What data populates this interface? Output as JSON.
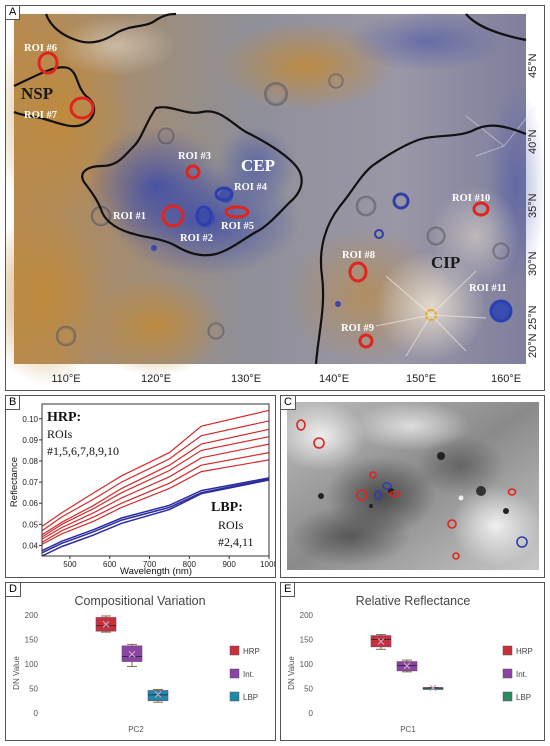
{
  "panels": {
    "a": "A",
    "b": "B",
    "c": "C",
    "d": "D",
    "e": "E"
  },
  "map": {
    "regions": [
      {
        "id": "nsp",
        "label": "NSP"
      },
      {
        "id": "cep",
        "label": "CEP"
      },
      {
        "id": "cip",
        "label": "CIP"
      }
    ],
    "rois": [
      {
        "label": "ROI #6",
        "group": "HRP"
      },
      {
        "label": "ROI #7",
        "group": "HRP"
      },
      {
        "label": "ROI #3",
        "group": "HRP"
      },
      {
        "label": "ROI #4",
        "group": "LBP"
      },
      {
        "label": "ROI #1",
        "group": "HRP"
      },
      {
        "label": "ROI #2",
        "group": "LBP"
      },
      {
        "label": "ROI #5",
        "group": "HRP"
      },
      {
        "label": "ROI #8",
        "group": "HRP"
      },
      {
        "label": "ROI #9",
        "group": "HRP"
      },
      {
        "label": "ROI #10",
        "group": "HRP"
      },
      {
        "label": "ROI #11",
        "group": "LBP"
      }
    ],
    "lat_labels": [
      "45°N",
      "40°N",
      "35°N",
      "30°N",
      "25°N",
      "20°N"
    ],
    "lon_labels": [
      "110°E",
      "120°E",
      "130°E",
      "140°E",
      "150°E",
      "160°E"
    ]
  },
  "spectra": {
    "chart_data": {
      "type": "line",
      "xlabel": "Wavelength (nm)",
      "ylabel": "Reflectance",
      "xlim": [
        430,
        1000
      ],
      "ylim": [
        0.035,
        0.107
      ],
      "xticks": [
        500,
        600,
        700,
        800,
        900,
        1000
      ],
      "yticks": [
        0.04,
        0.05,
        0.06,
        0.07,
        0.08,
        0.09,
        0.1
      ],
      "x": [
        430,
        480,
        560,
        630,
        750,
        830,
        1000
      ],
      "hrp_color": "#d42a2a",
      "lbp_color": "#2c2ca0",
      "series": [
        {
          "group": "HRP",
          "values": [
            0.049,
            0.0555,
            0.065,
            0.073,
            0.084,
            0.0965,
            0.104
          ]
        },
        {
          "group": "HRP",
          "values": [
            0.047,
            0.0535,
            0.062,
            0.07,
            0.081,
            0.092,
            0.099
          ]
        },
        {
          "group": "HRP",
          "values": [
            0.045,
            0.051,
            0.059,
            0.067,
            0.078,
            0.088,
            0.095
          ]
        },
        {
          "group": "HRP",
          "values": [
            0.044,
            0.05,
            0.0575,
            0.065,
            0.0755,
            0.085,
            0.0915
          ]
        },
        {
          "group": "HRP",
          "values": [
            0.043,
            0.0485,
            0.0555,
            0.0625,
            0.0725,
            0.0815,
            0.088
          ]
        },
        {
          "group": "HRP",
          "values": [
            0.0415,
            0.047,
            0.0535,
            0.06,
            0.0695,
            0.078,
            0.084
          ]
        },
        {
          "group": "HRP",
          "values": [
            0.0405,
            0.0455,
            0.0515,
            0.058,
            0.067,
            0.075,
            0.0805
          ]
        },
        {
          "group": "LBP",
          "values": [
            0.0375,
            0.042,
            0.0475,
            0.053,
            0.059,
            0.066,
            0.072
          ]
        },
        {
          "group": "LBP",
          "values": [
            0.0365,
            0.041,
            0.0465,
            0.052,
            0.058,
            0.065,
            0.0715
          ]
        },
        {
          "group": "LBP",
          "values": [
            0.035,
            0.0395,
            0.045,
            0.0505,
            0.057,
            0.0645,
            0.071
          ]
        }
      ],
      "annotations": {
        "hrp_title": "HRP:",
        "hrp_rois_1": "ROIs",
        "hrp_rois_2": "#1,5,6,7,8,9,10",
        "lbp_title": "LBP:",
        "lbp_rois_1": "ROIs",
        "lbp_rois_2": "#2,4,11"
      }
    }
  },
  "boxplots": [
    {
      "chart_data": {
        "type": "box",
        "title": "Compositional Variation",
        "ylabel": "DN Value",
        "xlabel": "PC2",
        "ylim": [
          0,
          200
        ],
        "yticks": [
          0,
          50,
          100,
          150,
          200
        ],
        "boxes": [
          {
            "name": "HRP",
            "color": "#c8303a",
            "min": 165,
            "q1": 167,
            "median": 178,
            "q3": 195,
            "max": 198,
            "mean": 181
          },
          {
            "name": "Int.",
            "color": "#8b44a4",
            "min": 95,
            "q1": 105,
            "median": 115,
            "q3": 137,
            "max": 140,
            "mean": 120
          },
          {
            "name": "LBP",
            "color": "#1f8aa8",
            "min": 22,
            "q1": 25,
            "median": 37,
            "q3": 46,
            "max": 48,
            "mean": 38
          }
        ],
        "legend": "right"
      }
    },
    {
      "chart_data": {
        "type": "box",
        "title": "Relative Reflectance",
        "ylabel": "DN Value",
        "xlabel": "PC1",
        "ylim": [
          0,
          200
        ],
        "yticks": [
          0,
          50,
          100,
          150,
          200
        ],
        "boxes": [
          {
            "name": "HRP",
            "color": "#c8303a",
            "min": 130,
            "q1": 135,
            "median": 150,
            "q3": 158,
            "max": 160,
            "mean": 146
          },
          {
            "name": "Int.",
            "color": "#8b44a4",
            "min": 84,
            "q1": 86,
            "median": 97,
            "q3": 105,
            "max": 108,
            "mean": 96
          },
          {
            "name": "LBP",
            "color": "#2e8a5e",
            "min": 50,
            "q1": 50,
            "median": 51,
            "q3": 52,
            "max": 52,
            "mean": 51
          }
        ],
        "legend": "right"
      }
    }
  ]
}
